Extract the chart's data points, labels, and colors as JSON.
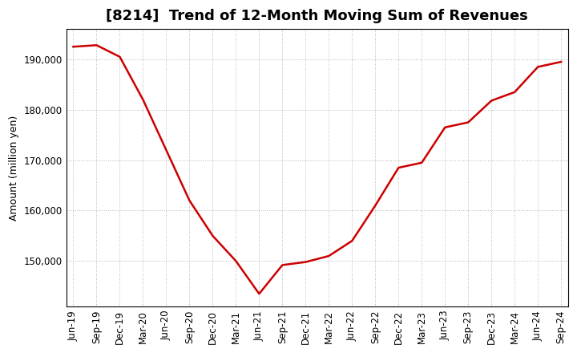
{
  "title": "[8214]  Trend of 12-Month Moving Sum of Revenues",
  "ylabel": "Amount (million yen)",
  "line_color": "#cc0000",
  "background_color": "#ffffff",
  "plot_bg_color": "#ffffff",
  "grid_color": "#999999",
  "x_labels": [
    "Jun-19",
    "Sep-19",
    "Dec-19",
    "Mar-20",
    "Jun-20",
    "Sep-20",
    "Dec-20",
    "Mar-21",
    "Jun-21",
    "Sep-21",
    "Dec-21",
    "Mar-22",
    "Jun-22",
    "Sep-22",
    "Dec-22",
    "Mar-23",
    "Jun-23",
    "Sep-23",
    "Dec-23",
    "Mar-24",
    "Jun-24",
    "Sep-24"
  ],
  "values": [
    192500,
    192800,
    190500,
    182000,
    172000,
    162000,
    155000,
    150000,
    143500,
    149200,
    149800,
    151000,
    154000,
    161000,
    168500,
    169500,
    176500,
    177500,
    181800,
    183500,
    188500,
    189500
  ],
  "ylim_min": 141000,
  "ylim_max": 196000,
  "yticks": [
    150000,
    160000,
    170000,
    180000,
    190000
  ],
  "title_fontsize": 13,
  "axis_fontsize": 9,
  "tick_fontsize": 8.5
}
